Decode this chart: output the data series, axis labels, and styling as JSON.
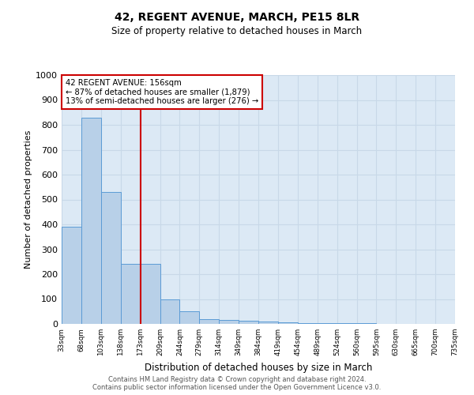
{
  "title": "42, REGENT AVENUE, MARCH, PE15 8LR",
  "subtitle": "Size of property relative to detached houses in March",
  "xlabel": "Distribution of detached houses by size in March",
  "ylabel": "Number of detached properties",
  "bar_values": [
    390,
    830,
    530,
    240,
    240,
    97,
    52,
    20,
    15,
    12,
    8,
    5,
    4,
    3,
    2,
    2,
    1,
    1,
    1,
    1
  ],
  "bar_labels": [
    "33sqm",
    "68sqm",
    "103sqm",
    "138sqm",
    "173sqm",
    "209sqm",
    "244sqm",
    "279sqm",
    "314sqm",
    "349sqm",
    "384sqm",
    "419sqm",
    "454sqm",
    "489sqm",
    "524sqm",
    "560sqm",
    "595sqm",
    "630sqm",
    "665sqm",
    "700sqm",
    "735sqm"
  ],
  "bar_color": "#b8d0e8",
  "bar_edge_color": "#5b9bd5",
  "bar_edge_width": 0.7,
  "annotation_text_line1": "42 REGENT AVENUE: 156sqm",
  "annotation_text_line2": "← 87% of detached houses are smaller (1,879)",
  "annotation_text_line3": "13% of semi-detached houses are larger (276) →",
  "annotation_box_color": "#ffffff",
  "annotation_box_edge": "#cc0000",
  "vline_color": "#cc0000",
  "vline_x_bar_index": 3.5,
  "ylim": [
    0,
    1000
  ],
  "yticks": [
    0,
    100,
    200,
    300,
    400,
    500,
    600,
    700,
    800,
    900,
    1000
  ],
  "grid_color": "#c8d8e8",
  "background_color": "#dce9f5",
  "title_fontsize": 10,
  "subtitle_fontsize": 8.5,
  "ylabel_fontsize": 8,
  "xlabel_fontsize": 8.5,
  "footer_line1": "Contains HM Land Registry data © Crown copyright and database right 2024.",
  "footer_line2": "Contains public sector information licensed under the Open Government Licence v3.0."
}
